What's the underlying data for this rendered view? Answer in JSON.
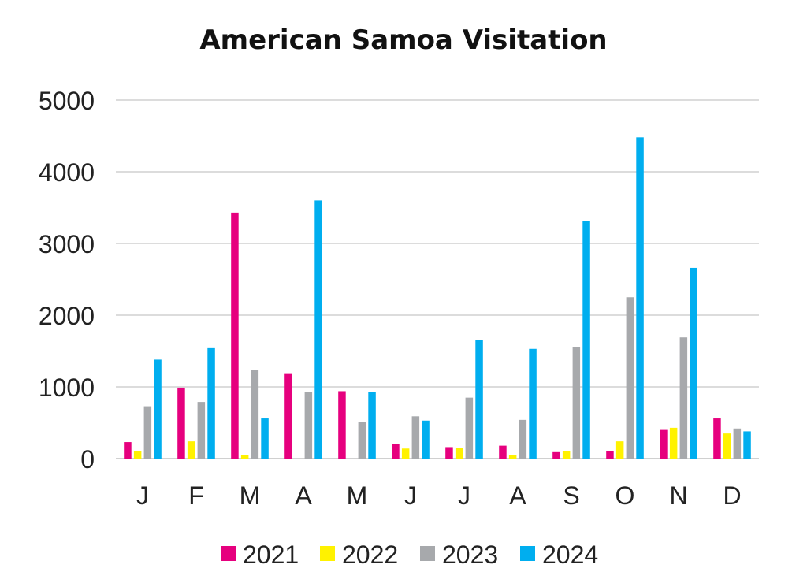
{
  "chart_data": {
    "type": "bar",
    "title": "American Samoa Visitation",
    "xlabel": "",
    "ylabel": "",
    "ylim": [
      0,
      5000
    ],
    "yticks": [
      0,
      1000,
      2000,
      3000,
      4000,
      5000
    ],
    "grid": "horizontal",
    "legend_position": "bottom",
    "categories": [
      "J",
      "F",
      "M",
      "A",
      "M",
      "J",
      "J",
      "A",
      "S",
      "O",
      "N",
      "D"
    ],
    "series": [
      {
        "name": "2021",
        "color": "#E6007E",
        "values": [
          230,
          990,
          3430,
          1180,
          940,
          200,
          160,
          180,
          90,
          110,
          400,
          560
        ]
      },
      {
        "name": "2022",
        "color": "#FFF200",
        "values": [
          100,
          240,
          50,
          0,
          0,
          140,
          150,
          50,
          100,
          240,
          430,
          350
        ]
      },
      {
        "name": "2023",
        "color": "#A7A9AC",
        "values": [
          730,
          790,
          1240,
          930,
          510,
          590,
          850,
          540,
          1560,
          2250,
          1690,
          420
        ]
      },
      {
        "name": "2024",
        "color": "#00AEEF",
        "values": [
          1380,
          1540,
          560,
          3600,
          930,
          530,
          1650,
          1530,
          3310,
          4480,
          2660,
          380
        ]
      }
    ]
  }
}
